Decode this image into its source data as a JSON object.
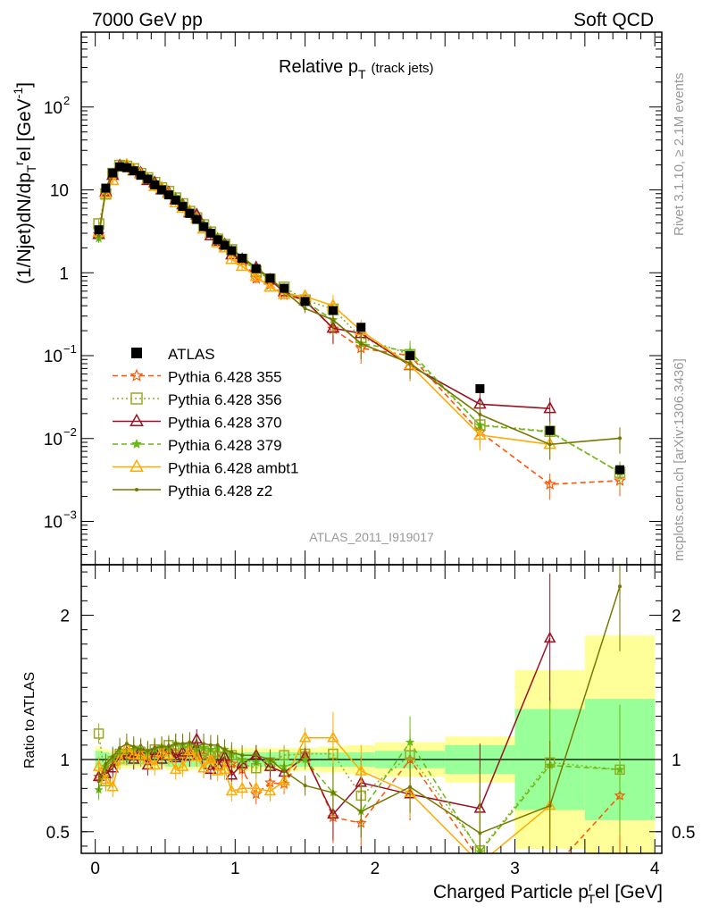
{
  "header": {
    "beam": "7000 GeV pp",
    "category": "Soft QCD"
  },
  "side_labels": {
    "rivet": "Rivet 3.1.10, ≥ 2.1M events",
    "mcplots": "mcplots.cern.ch [arXiv:1306.3436]"
  },
  "chart_data": [
    {
      "type": "line",
      "panel": "main",
      "title_main": "Relative p",
      "title_sub": "T",
      "title_extra": "(track jets)",
      "ylabel": "(1/Njet)dN/dp_T^rel [GeV^-1]",
      "ylabel_parts": {
        "a": "(1/Njet)dN/dp",
        "sub": "T",
        "sup": "r",
        "b": "el [GeV",
        "sup2": "-1",
        "c": "]"
      },
      "yscale": "log",
      "ylim": [
        0.0003,
        800
      ],
      "xlim": [
        -0.1,
        4.05
      ],
      "yticks": [
        {
          "v": 0.001,
          "m": "10",
          "e": "−3"
        },
        {
          "v": 0.01,
          "m": "10",
          "e": "−2"
        },
        {
          "v": 0.1,
          "m": "10",
          "e": "−1"
        },
        {
          "v": 1,
          "m": "1",
          "e": ""
        },
        {
          "v": 10,
          "m": "10",
          "e": ""
        },
        {
          "v": 100,
          "m": "10",
          "e": "2"
        }
      ],
      "analysis_label": "ATLAS_2011_I919017",
      "legend_position": "middle-left",
      "data": {
        "name": "ATLAS",
        "color": "#000000",
        "x": [
          0.025,
          0.075,
          0.125,
          0.175,
          0.225,
          0.275,
          0.325,
          0.375,
          0.425,
          0.475,
          0.525,
          0.575,
          0.625,
          0.675,
          0.725,
          0.775,
          0.825,
          0.875,
          0.925,
          0.975,
          1.05,
          1.15,
          1.25,
          1.35,
          1.5,
          1.7,
          1.9,
          2.25,
          2.75,
          3.25,
          3.75
        ],
        "y": [
          3.3,
          10.5,
          16.0,
          19.0,
          18.5,
          17.0,
          15.0,
          13.5,
          11.5,
          10.0,
          8.7,
          7.5,
          6.3,
          5.2,
          4.4,
          3.6,
          3.0,
          2.5,
          2.15,
          1.85,
          1.5,
          1.12,
          0.86,
          0.65,
          0.45,
          0.35,
          0.22,
          0.1,
          0.04,
          0.0125,
          0.0042
        ]
      },
      "series": [
        {
          "name": "Pythia 6.428 355",
          "color": "#ff5500",
          "dash": "6,4",
          "marker": "star",
          "x": [
            0.025,
            0.075,
            0.125,
            0.175,
            0.225,
            0.275,
            0.325,
            0.375,
            0.425,
            0.475,
            0.525,
            0.575,
            0.625,
            0.675,
            0.725,
            0.775,
            0.825,
            0.875,
            0.925,
            0.975,
            1.05,
            1.15,
            1.25,
            1.35,
            1.5,
            1.7,
            1.9,
            2.25,
            2.75,
            3.25,
            3.75
          ],
          "y": [
            2.9,
            9.8,
            15.5,
            19.5,
            19.0,
            17.5,
            15.3,
            13.8,
            12.0,
            10.8,
            9.2,
            7.9,
            6.5,
            5.6,
            4.5,
            3.7,
            3.0,
            2.6,
            2.1,
            1.8,
            1.4,
            0.85,
            0.72,
            0.54,
            0.47,
            0.21,
            0.123,
            0.1,
            0.012,
            0.0028,
            0.0031
          ]
        },
        {
          "name": "Pythia 6.428 356",
          "color": "#99aa22",
          "dash": "2,3",
          "marker": "square",
          "x": [
            0.025,
            0.075,
            0.125,
            0.175,
            0.225,
            0.275,
            0.325,
            0.375,
            0.425,
            0.475,
            0.525,
            0.575,
            0.625,
            0.675,
            0.725,
            0.775,
            0.825,
            0.875,
            0.925,
            0.975,
            1.05,
            1.15,
            1.25,
            1.35,
            1.5,
            1.7,
            1.9,
            2.25,
            2.75,
            3.25,
            3.75
          ],
          "y": [
            3.9,
            8.9,
            15.8,
            19.8,
            19.3,
            18.0,
            15.8,
            14.0,
            12.3,
            10.6,
            9.6,
            8.0,
            6.8,
            5.5,
            4.6,
            3.8,
            3.1,
            2.55,
            2.2,
            1.9,
            1.45,
            1.05,
            0.84,
            0.67,
            0.47,
            0.365,
            0.165,
            0.103,
            0.0146,
            0.0122,
            0.0039
          ]
        },
        {
          "name": "Pythia 6.428 370",
          "color": "#991122",
          "dash": "",
          "marker": "triangle",
          "x": [
            0.025,
            0.075,
            0.125,
            0.175,
            0.225,
            0.275,
            0.325,
            0.375,
            0.425,
            0.475,
            0.525,
            0.575,
            0.625,
            0.675,
            0.725,
            0.775,
            0.825,
            0.875,
            0.925,
            0.975,
            1.05,
            1.15,
            1.25,
            1.35,
            1.5,
            1.7,
            1.9,
            2.25,
            2.75,
            3.25,
            3.75
          ],
          "y": [
            2.9,
            9.5,
            15.0,
            19.6,
            19.5,
            17.0,
            16.0,
            13.0,
            12.2,
            10.0,
            9.3,
            7.6,
            6.6,
            5.3,
            5.0,
            3.4,
            2.8,
            2.4,
            2.2,
            1.65,
            1.45,
            1.15,
            0.82,
            0.59,
            0.46,
            0.215,
            0.185,
            0.076,
            0.026,
            0.023,
            null
          ]
        },
        {
          "name": "Pythia 6.428 379",
          "color": "#66bb11",
          "dash": "6,4",
          "marker": "smallstar",
          "x": [
            0.025,
            0.075,
            0.125,
            0.175,
            0.225,
            0.275,
            0.325,
            0.375,
            0.425,
            0.475,
            0.525,
            0.575,
            0.625,
            0.675,
            0.725,
            0.775,
            0.825,
            0.875,
            0.925,
            0.975,
            1.05,
            1.15,
            1.25,
            1.35,
            1.5,
            1.7,
            1.9,
            2.25,
            2.75,
            3.25,
            3.75
          ],
          "y": [
            2.6,
            10.0,
            16.2,
            20.0,
            19.6,
            18.2,
            16.2,
            14.2,
            12.3,
            10.9,
            9.4,
            8.3,
            6.9,
            5.7,
            4.7,
            3.9,
            3.2,
            2.7,
            2.3,
            1.9,
            1.5,
            1.1,
            0.85,
            0.62,
            0.45,
            0.27,
            0.14,
            0.112,
            0.0144,
            0.012,
            0.0039
          ]
        },
        {
          "name": "Pythia 6.428 ambt1",
          "color": "#ffaa00",
          "dash": "",
          "marker": "triangle",
          "x": [
            0.025,
            0.075,
            0.125,
            0.175,
            0.225,
            0.275,
            0.325,
            0.375,
            0.425,
            0.475,
            0.525,
            0.575,
            0.625,
            0.675,
            0.725,
            0.775,
            0.825,
            0.875,
            0.925,
            0.975,
            1.05,
            1.15,
            1.25,
            1.35,
            1.5,
            1.7,
            1.9,
            2.25,
            2.75,
            3.25,
            3.75
          ],
          "y": [
            3.1,
            9.0,
            13.0,
            19.0,
            20.0,
            17.5,
            15.5,
            13.5,
            11.0,
            10.5,
            9.0,
            7.0,
            6.0,
            5.5,
            4.5,
            3.4,
            3.0,
            2.3,
            2.0,
            1.45,
            1.2,
            0.9,
            0.67,
            0.55,
            0.52,
            0.4,
            0.2,
            0.077,
            0.011,
            0.0085,
            null
          ]
        },
        {
          "name": "Pythia 6.428 z2",
          "color": "#777700",
          "dash": "",
          "marker": "dot",
          "x": [
            0.025,
            0.075,
            0.125,
            0.175,
            0.225,
            0.275,
            0.325,
            0.375,
            0.425,
            0.475,
            0.525,
            0.575,
            0.625,
            0.675,
            0.725,
            0.775,
            0.825,
            0.875,
            0.925,
            0.975,
            1.05,
            1.15,
            1.25,
            1.35,
            1.5,
            1.7,
            1.9,
            2.25,
            2.75,
            3.25,
            3.75
          ],
          "y": [
            2.8,
            10.2,
            16.3,
            20.5,
            20.5,
            18.5,
            16.0,
            14.3,
            12.4,
            10.9,
            9.5,
            8.3,
            7.0,
            5.8,
            4.8,
            4.0,
            3.3,
            2.75,
            2.3,
            1.95,
            1.55,
            1.15,
            0.86,
            0.6,
            0.37,
            0.27,
            0.14,
            0.081,
            0.0195,
            0.0085,
            0.0101
          ]
        }
      ]
    },
    {
      "type": "line",
      "panel": "ratio",
      "ylabel": "Ratio to ATLAS",
      "xlabel_parts": {
        "a": "Charged Particle p",
        "sup": "r",
        "sub": "T",
        "b": "el [GeV]"
      },
      "ylim": [
        0.35,
        2.35
      ],
      "xlim": [
        -0.1,
        4.05
      ],
      "yticks": [
        0.5,
        1,
        2
      ],
      "yticklabels": [
        "0.5",
        "1",
        "2"
      ],
      "xticks": [
        0,
        1,
        2,
        3,
        4
      ],
      "xticklabels": [
        "0",
        "1",
        "2",
        "3",
        "4"
      ],
      "reference_line": 1,
      "uncertainty_bands": [
        {
          "x0": 0.0,
          "x1": 0.05,
          "inner": 0.06,
          "outer": 0.09
        },
        {
          "x0": 0.05,
          "x1": 0.1,
          "inner": 0.05,
          "outer": 0.07
        },
        {
          "x0": 0.1,
          "x1": 0.3,
          "inner": 0.04,
          "outer": 0.06
        },
        {
          "x0": 0.3,
          "x1": 0.5,
          "inner": 0.04,
          "outer": 0.06
        },
        {
          "x0": 0.5,
          "x1": 0.7,
          "inner": 0.05,
          "outer": 0.07
        },
        {
          "x0": 0.7,
          "x1": 0.9,
          "inner": 0.05,
          "outer": 0.07
        },
        {
          "x0": 0.9,
          "x1": 1.0,
          "inner": 0.05,
          "outer": 0.08
        },
        {
          "x0": 1.0,
          "x1": 1.1,
          "inner": 0.05,
          "outer": 0.08
        },
        {
          "x0": 1.1,
          "x1": 1.2,
          "inner": 0.05,
          "outer": 0.08
        },
        {
          "x0": 1.2,
          "x1": 1.3,
          "inner": 0.05,
          "outer": 0.08
        },
        {
          "x0": 1.3,
          "x1": 1.4,
          "inner": 0.05,
          "outer": 0.08
        },
        {
          "x0": 1.4,
          "x1": 1.6,
          "inner": 0.05,
          "outer": 0.08
        },
        {
          "x0": 1.6,
          "x1": 1.8,
          "inner": 0.05,
          "outer": 0.09
        },
        {
          "x0": 1.8,
          "x1": 2.0,
          "inner": 0.05,
          "outer": 0.1
        },
        {
          "x0": 2.0,
          "x1": 2.5,
          "inner": 0.06,
          "outer": 0.12
        },
        {
          "x0": 2.5,
          "x1": 3.0,
          "inner": 0.1,
          "outer": 0.16
        },
        {
          "x0": 3.0,
          "x1": 3.5,
          "inner": 0.35,
          "outer": 0.62
        },
        {
          "x0": 3.5,
          "x1": 4.0,
          "inner": 0.42,
          "outer": 0.86
        }
      ],
      "series": [
        {
          "name": "Pythia 6.428 355",
          "color": "#ff5500",
          "dash": "6,4",
          "marker": "star",
          "y": [
            0.88,
            0.93,
            0.97,
            1.03,
            1.03,
            1.03,
            1.02,
            1.02,
            1.04,
            1.08,
            1.06,
            1.05,
            1.03,
            1.08,
            1.02,
            1.03,
            1.0,
            1.04,
            0.98,
            0.97,
            0.93,
            0.76,
            0.84,
            0.83,
            1.04,
            0.6,
            0.56,
            1.0,
            0.3,
            0.22,
            0.75
          ]
        },
        {
          "name": "Pythia 6.428 356",
          "color": "#99aa22",
          "dash": "2,3",
          "marker": "square",
          "y": [
            1.18,
            0.85,
            0.99,
            1.04,
            1.04,
            1.06,
            1.05,
            1.04,
            1.07,
            1.06,
            1.1,
            1.07,
            1.08,
            1.06,
            1.05,
            1.06,
            1.03,
            1.02,
            1.02,
            1.03,
            0.97,
            0.94,
            0.98,
            1.03,
            1.04,
            1.04,
            0.75,
            1.03,
            0.37,
            0.98,
            0.93
          ]
        },
        {
          "name": "Pythia 6.428 370",
          "color": "#991122",
          "dash": "",
          "marker": "triangle",
          "y": [
            0.88,
            0.9,
            0.94,
            1.03,
            1.05,
            1.0,
            1.07,
            0.96,
            1.06,
            1.0,
            1.07,
            1.01,
            1.05,
            1.02,
            1.14,
            0.94,
            0.93,
            0.96,
            1.02,
            0.89,
            0.97,
            1.03,
            0.95,
            0.91,
            1.02,
            0.62,
            0.84,
            0.76,
            0.66,
            1.84,
            null
          ]
        },
        {
          "name": "Pythia 6.428 379",
          "color": "#66bb11",
          "dash": "6,4",
          "marker": "smallstar",
          "y": [
            0.79,
            0.95,
            1.01,
            1.05,
            1.06,
            1.07,
            1.08,
            1.05,
            1.07,
            1.09,
            1.08,
            1.11,
            1.1,
            1.1,
            1.07,
            1.08,
            1.07,
            1.08,
            1.07,
            1.03,
            1.0,
            0.98,
            0.99,
            0.95,
            1.0,
            0.77,
            0.64,
            1.12,
            0.36,
            0.96,
            0.93
          ]
        },
        {
          "name": "Pythia 6.428 ambt1",
          "color": "#ffaa00",
          "dash": "",
          "marker": "triangle",
          "y": [
            0.95,
            0.86,
            0.81,
            1.0,
            1.08,
            1.03,
            1.03,
            1.0,
            0.96,
            1.05,
            1.03,
            0.93,
            0.95,
            1.06,
            1.02,
            0.94,
            1.0,
            0.92,
            0.93,
            0.78,
            0.8,
            0.8,
            0.78,
            0.85,
            1.15,
            1.15,
            0.92,
            0.77,
            0.28,
            0.68,
            null
          ]
        },
        {
          "name": "Pythia 6.428 z2",
          "color": "#777700",
          "dash": "",
          "marker": "dot",
          "y": [
            0.85,
            0.97,
            1.02,
            1.08,
            1.11,
            1.09,
            1.07,
            1.06,
            1.08,
            1.09,
            1.09,
            1.11,
            1.11,
            1.12,
            1.09,
            1.11,
            1.1,
            1.1,
            1.07,
            1.05,
            1.03,
            1.03,
            1.0,
            0.92,
            0.82,
            0.77,
            0.64,
            0.81,
            0.49,
            0.68,
            2.2
          ]
        }
      ]
    }
  ]
}
